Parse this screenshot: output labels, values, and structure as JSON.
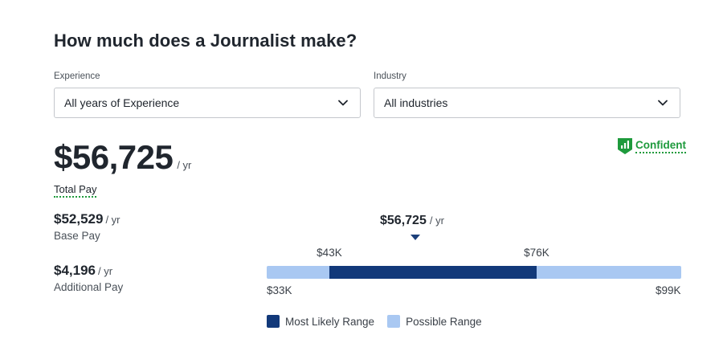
{
  "title": "How much does a Journalist make?",
  "filters": {
    "experience": {
      "label": "Experience",
      "value": "All years of Experience"
    },
    "industry": {
      "label": "Industry",
      "value": "All industries"
    }
  },
  "total_pay": {
    "amount": "$56,725",
    "unit": "/ yr",
    "label": "Total Pay"
  },
  "confidence": {
    "label": "Confident",
    "color": "#1e9a3c"
  },
  "base_pay": {
    "amount": "$52,529",
    "unit": "/ yr",
    "label": "Base Pay"
  },
  "additional_pay": {
    "amount": "$4,196",
    "unit": "/ yr",
    "label": "Additional Pay"
  },
  "range_chart": {
    "median": {
      "amount": "$56,725",
      "unit": "/ yr",
      "value": 56725
    },
    "min_label": "$33K",
    "max_label": "$99K",
    "likely_low_label": "$43K",
    "likely_high_label": "$76K",
    "min": 33000,
    "max": 99000,
    "likely_low": 43000,
    "likely_high": 76000,
    "colors": {
      "likely": "#12397a",
      "possible": "#a9c8f2"
    }
  },
  "legend": {
    "likely": "Most Likely Range",
    "possible": "Possible Range"
  }
}
